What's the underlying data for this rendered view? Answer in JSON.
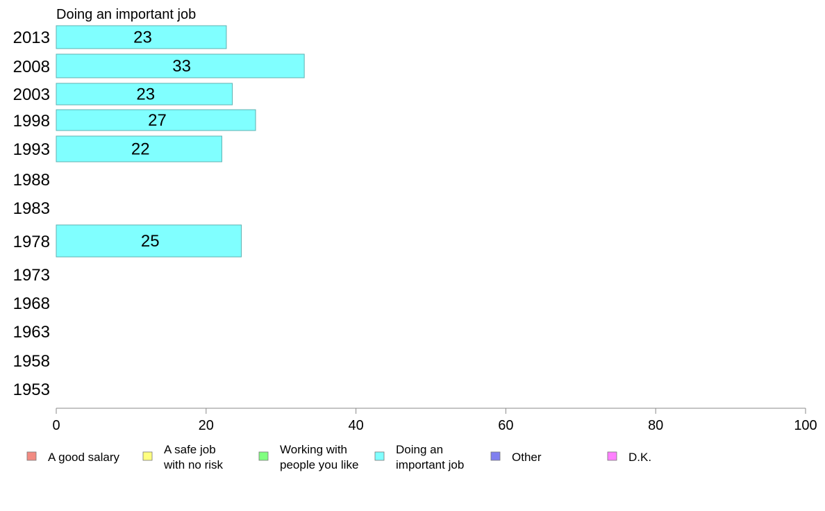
{
  "chart_data": {
    "type": "bar",
    "orientation": "horizontal",
    "title": "Doing an important job",
    "xlabel": "",
    "ylabel": "",
    "xlim": [
      0,
      100
    ],
    "x_ticks": [
      0,
      20,
      40,
      60,
      80,
      100
    ],
    "categories": [
      "2013",
      "2008",
      "2003",
      "1998",
      "1993",
      "1988",
      "1983",
      "1978",
      "1973",
      "1968",
      "1963",
      "1958",
      "1953"
    ],
    "series": [
      {
        "name": "Doing an important job",
        "color": "#80FFFF",
        "values": [
          22.7,
          33.1,
          23.5,
          26.6,
          22.1,
          null,
          null,
          24.7,
          null,
          null,
          null,
          null,
          null
        ],
        "labels": [
          "23",
          "33",
          "23",
          "27",
          "22",
          "",
          "",
          "25",
          "",
          "",
          "",
          "",
          ""
        ]
      }
    ],
    "legend": {
      "placement": "bottom",
      "entries": [
        {
          "lines": [
            "A good salary"
          ],
          "color": "#F28B82"
        },
        {
          "lines": [
            "A safe job",
            "with no risk"
          ],
          "color": "#FFFF80"
        },
        {
          "lines": [
            "Working with",
            "people you like"
          ],
          "color": "#80FF80"
        },
        {
          "lines": [
            "Doing an",
            "important job"
          ],
          "color": "#80FFFF"
        },
        {
          "lines": [
            "Other"
          ],
          "color": "#8080F0"
        },
        {
          "lines": [
            "D.K."
          ],
          "color": "#FF80FF"
        }
      ]
    },
    "grid": false
  }
}
